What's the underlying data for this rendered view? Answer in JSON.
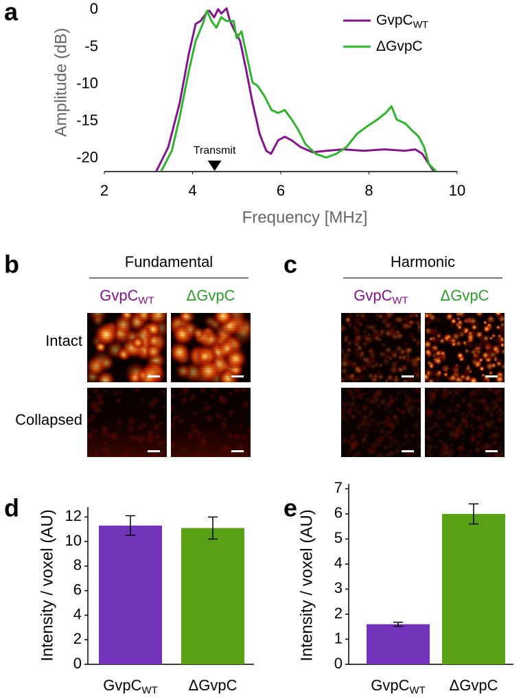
{
  "panel_labels": [
    "a",
    "b",
    "c",
    "d",
    "e"
  ],
  "chart_data": [
    {
      "type": "line",
      "x_label": "Frequency [MHz]",
      "y_label": "Amplitude (dB)",
      "xlim": [
        2,
        10
      ],
      "xticks": [
        2,
        4,
        6,
        8,
        10
      ],
      "ylim": [
        -21.8,
        0.5
      ],
      "yticks": [
        0,
        -5,
        -10,
        -15,
        -20
      ],
      "legend": "upper right",
      "annotation": {
        "text": "Transmit",
        "x": 4.5
      },
      "series": [
        {
          "name": "GvpC",
          "name_subscript": "WT",
          "color": "#86118f",
          "x": [
            3.18,
            3.45,
            3.71,
            3.91,
            4.07,
            4.18,
            4.3,
            4.38,
            4.49,
            4.58,
            4.65,
            4.77,
            4.85,
            4.96,
            5.08,
            5.21,
            5.36,
            5.52,
            5.67,
            5.78,
            5.94,
            6.09,
            6.25,
            6.45,
            6.72,
            7.03,
            7.42,
            7.88,
            8.35,
            8.82,
            9.05,
            9.21,
            9.36,
            9.47
          ],
          "values": [
            -21.75,
            -18.5,
            -12.5,
            -6.1,
            -1.9,
            -1.5,
            -0.55,
            -0.1,
            -1,
            0.1,
            -0.5,
            0.2,
            -1.5,
            -2.9,
            -4.2,
            -7.9,
            -12.5,
            -16.7,
            -19,
            -19.4,
            -17.6,
            -17.1,
            -17.6,
            -18.5,
            -19.2,
            -19,
            -18.8,
            -19,
            -18.8,
            -19,
            -18.8,
            -19.4,
            -20.8,
            -21.75
          ]
        },
        {
          "name": "ΔGvpC",
          "color": "#2cb52a",
          "x": [
            3.29,
            3.53,
            3.71,
            3.91,
            4.07,
            4.23,
            4.33,
            4.43,
            4.54,
            4.65,
            4.77,
            4.93,
            5.0,
            5.11,
            5.24,
            5.36,
            5.47,
            5.63,
            5.79,
            5.94,
            6.09,
            6.25,
            6.4,
            6.56,
            6.79,
            7.03,
            7.26,
            7.49,
            7.73,
            7.96,
            8.19,
            8.38,
            8.51,
            8.63,
            8.82,
            8.97,
            9.13,
            9.25,
            9.36,
            9.52
          ],
          "values": [
            -21.75,
            -19,
            -14.4,
            -8.4,
            -4.2,
            -1.9,
            -0.1,
            -1.5,
            -2.4,
            -1,
            -1.5,
            -1.5,
            -3.8,
            -2.9,
            -6.5,
            -9.8,
            -10.2,
            -11.6,
            -13.5,
            -13.9,
            -13.5,
            -14.8,
            -16.2,
            -18.1,
            -19.4,
            -19.9,
            -19.4,
            -18.5,
            -16.7,
            -15.7,
            -14.8,
            -13.9,
            -13,
            -14.8,
            -15.3,
            -16.2,
            -17.1,
            -18.5,
            -20.8,
            -21.75
          ]
        }
      ]
    },
    {
      "type": "bar",
      "y_label": "Intensity / voxel (AU)",
      "categories": [
        "GvpC",
        "ΔGvpC"
      ],
      "category_subscripts": [
        "WT",
        null
      ],
      "values": [
        11.3,
        11.1
      ],
      "errors": [
        0.8,
        0.9
      ],
      "colors": [
        "#7232b9",
        "#5aa014"
      ],
      "ylim": [
        0,
        12.8
      ],
      "yticks": [
        0,
        2,
        4,
        6,
        8,
        10,
        12
      ]
    },
    {
      "type": "bar",
      "y_label": "Intensity / voxel (AU)",
      "categories": [
        "GvpC",
        "ΔGvpC"
      ],
      "category_subscripts": [
        "WT",
        null
      ],
      "values": [
        1.6,
        6.0
      ],
      "errors": [
        0.08,
        0.4
      ],
      "colors": [
        "#7232b9",
        "#5aa014"
      ],
      "ylim": [
        0,
        7.2
      ],
      "yticks": [
        0,
        1,
        2,
        3,
        4,
        5,
        6,
        7
      ]
    }
  ],
  "imaging": {
    "rows": [
      "Intact",
      "Collapsed"
    ],
    "panels": [
      {
        "title": "Fundamental",
        "columns": [
          {
            "name": "GvpC",
            "subscript": "WT",
            "color": "#86118f"
          },
          {
            "name": "ΔGvpC",
            "color": "#2c9e2a"
          }
        ]
      },
      {
        "title": "Harmonic",
        "columns": [
          {
            "name": "GvpC",
            "subscript": "WT",
            "color": "#86118f"
          },
          {
            "name": "ΔGvpC",
            "color": "#2c9e2a"
          }
        ]
      }
    ]
  }
}
